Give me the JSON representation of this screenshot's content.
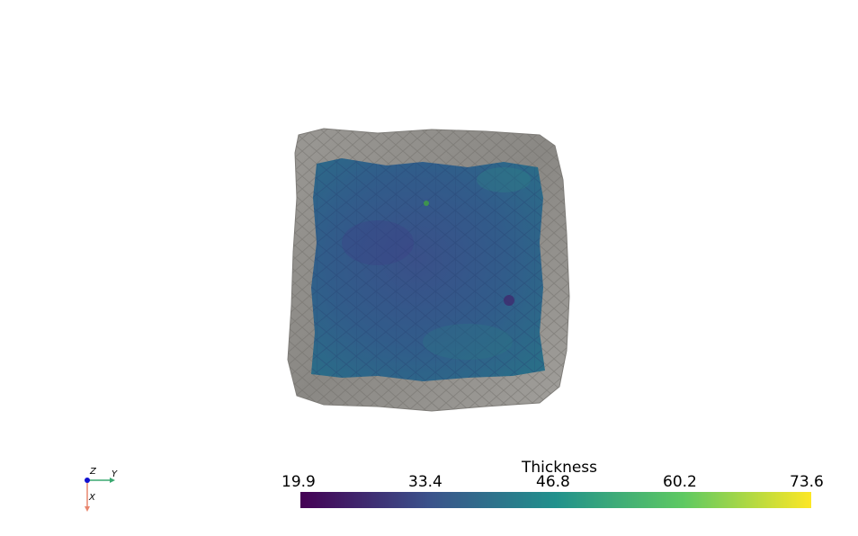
{
  "scalar_bar": {
    "title": "Thickness",
    "ticks": [
      "19.9",
      "33.4",
      "46.8",
      "60.2",
      "73.6"
    ],
    "range": [
      19.9,
      73.6
    ],
    "colormap": "viridis",
    "colors": [
      "#440154",
      "#3b528b",
      "#21918c",
      "#5ec962",
      "#fde725"
    ]
  },
  "orientation_axes": {
    "x_label": "X",
    "y_label": "Y",
    "z_label": "Z",
    "x_color": "#e8856d",
    "y_color": "#3aa870",
    "z_color": "#1010d0"
  },
  "scene": {
    "background": "#ffffff",
    "border_color": "#8e8c88",
    "surface_base": "#33598a"
  }
}
